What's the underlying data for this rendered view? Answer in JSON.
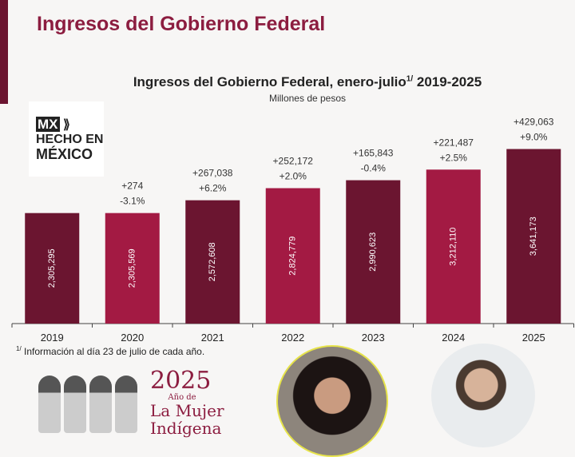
{
  "header": {
    "title": "Ingresos del Gobierno Federal"
  },
  "logo": {
    "line1": "MX",
    "line2": "HECHO EN",
    "line3": "MÉXICO"
  },
  "chart_data": {
    "type": "bar",
    "title": "Ingresos del Gobierno Federal, enero-julio",
    "title_sup": "1/",
    "title_years": "2019-2025",
    "subtitle": "Millones de pesos",
    "categories": [
      "2019",
      "2020",
      "2021",
      "2022",
      "2023",
      "2024",
      "2025"
    ],
    "values": [
      2305295,
      2305569,
      2572608,
      2824779,
      2990623,
      3212110,
      3641173
    ],
    "value_labels": [
      "2,305,295",
      "2,305,569",
      "2,572,608",
      "2,824,779",
      "2,990,623",
      "3,212,110",
      "3,641,173"
    ],
    "change_abs": [
      "",
      "+274",
      "+267,038",
      "+252,172",
      "+165,843",
      "+221,487",
      "+429,063"
    ],
    "change_pct": [
      "",
      "-3.1%",
      "+6.2%",
      "+2.0%",
      "-0.4%",
      "+2.5%",
      "+9.0%"
    ],
    "colors": [
      "#6b1530",
      "#a31a43",
      "#6b1530",
      "#a31a43",
      "#6b1530",
      "#a31a43",
      "#6b1530"
    ],
    "ylim": [
      0,
      4000000
    ],
    "grid": false
  },
  "footnote": {
    "sup": "1/",
    "text": "Información al día 23 de julio de cada año."
  },
  "banner": {
    "year": "2025",
    "line1": "Año de",
    "line2": "La Mujer",
    "line3": "Indígena"
  }
}
